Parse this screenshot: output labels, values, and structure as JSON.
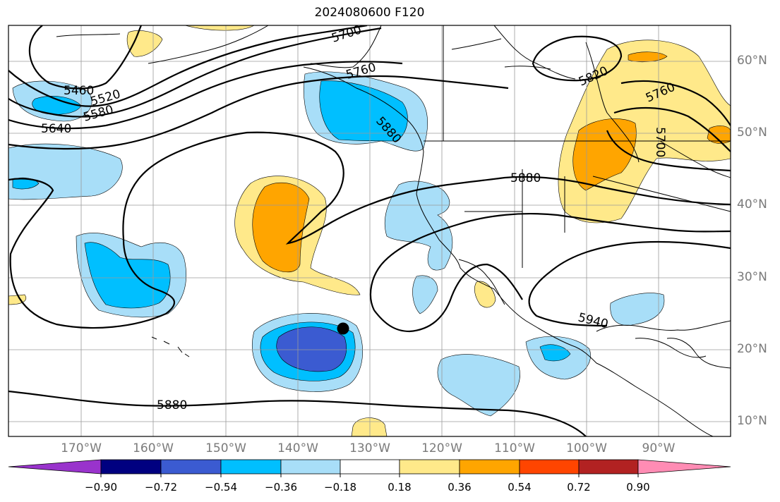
{
  "title": "2024080600 F120",
  "latitude_labels": [
    "60°N",
    "50°N",
    "40°N",
    "30°N",
    "20°N",
    "10°N"
  ],
  "longitude_labels": [
    "170°W",
    "160°W",
    "150°W",
    "140°W",
    "130°W",
    "120°W",
    "110°W",
    "100°W",
    "90°W"
  ],
  "contour_labels": [
    "5700",
    "5760",
    "5460",
    "5520",
    "5580",
    "5640",
    "5820",
    "5760",
    "5700",
    "5880",
    "5880",
    "5940",
    "5880"
  ],
  "colorbar": {
    "ticks": [
      "−0.90",
      "−0.72",
      "−0.54",
      "−0.36",
      "−0.18",
      "0.18",
      "0.36",
      "0.54",
      "0.72",
      "0.90"
    ],
    "colors": [
      "#9933cc",
      "#000080",
      "#3b5bd1",
      "#00bfff",
      "#a8def8",
      "#ffffff",
      "#ffe98a",
      "#ffa500",
      "#ff4500",
      "#b22222",
      "#ff8cb4"
    ]
  },
  "storm_marker": "black-dot"
}
